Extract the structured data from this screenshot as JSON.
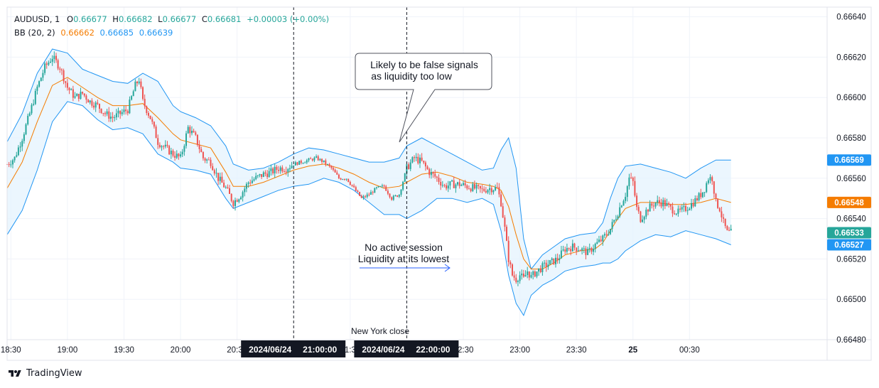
{
  "legend": {
    "symbol": "AUDUSD",
    "interval": "1",
    "o_label": "O",
    "o_value": "0.66677",
    "h_label": "H",
    "h_value": "0.66682",
    "l_label": "L",
    "l_value": "0.66677",
    "c_label": "C",
    "c_value": "0.66681",
    "change": "+0.00003 (+0.00%)",
    "bb_label": "BB (20, 2)",
    "bb_basis": "0.66662",
    "bb_upper": "0.66685",
    "bb_lower": "0.66639"
  },
  "brand": {
    "name": "TradingView"
  },
  "colors": {
    "up": "#26a69a",
    "down": "#ef5350",
    "basis": "#f57c00",
    "band": "#2196f3",
    "band_fill": "#e3f2fd",
    "grid": "#f0f3fa",
    "axis_text": "#131722",
    "time_badge_bg": "#131722"
  },
  "chart_data": {
    "type": "candlestick",
    "instrument": "AUDUSD",
    "interval": "1",
    "y_ticks": [
      0.6648,
      0.665,
      0.6652,
      0.6654,
      0.6656,
      0.6658,
      0.666,
      0.6662,
      0.6664
    ],
    "y_tick_labels": [
      "0.66480",
      "0.66500",
      "0.66520",
      "0.66540",
      "0.66560",
      "0.66580",
      "0.66600",
      "0.66620",
      "0.66640"
    ],
    "ylim": [
      0.66475,
      0.66644
    ],
    "x_range_minutes": [
      1108,
      1543
    ],
    "x_ticks": [
      {
        "t": 1110,
        "label": "18:30",
        "bold": false
      },
      {
        "t": 1140,
        "label": "19:00",
        "bold": false
      },
      {
        "t": 1170,
        "label": "19:30",
        "bold": false
      },
      {
        "t": 1200,
        "label": "20:00",
        "bold": false
      },
      {
        "t": 1230,
        "label": "20:30",
        "bold": false
      },
      {
        "t": 1290,
        "label": "21:30",
        "bold": false
      },
      {
        "t": 1350,
        "label": "22:30",
        "bold": false
      },
      {
        "t": 1380,
        "label": "23:00",
        "bold": false
      },
      {
        "t": 1410,
        "label": "23:30",
        "bold": false
      },
      {
        "t": 1440,
        "label": "25",
        "bold": true
      },
      {
        "t": 1470,
        "label": "00:30",
        "bold": false
      }
    ],
    "crosshair_markers": [
      {
        "t": 1260,
        "date": "2024/06/24",
        "time": "21:00:00"
      },
      {
        "t": 1320,
        "date": "2024/06/24",
        "time": "22:00:00"
      }
    ],
    "price_badges": [
      {
        "value": "0.66569",
        "color": "#2196f3"
      },
      {
        "value": "0.66548",
        "color": "#f57c00"
      },
      {
        "value": "0.66533",
        "color": "#26a69a"
      },
      {
        "value": "0.66527",
        "color": "#2196f3"
      }
    ],
    "annotations": {
      "callout": [
        "Likely to be false signals",
        "as liquidity too low"
      ],
      "session_note": [
        "No active session",
        "Liquidity at its lowest"
      ],
      "ny_close": "New York close"
    },
    "price_path": [
      [
        1108,
        0.66567
      ],
      [
        1112,
        0.6657
      ],
      [
        1116,
        0.6658
      ],
      [
        1120,
        0.66592
      ],
      [
        1124,
        0.66605
      ],
      [
        1128,
        0.66615
      ],
      [
        1132,
        0.6662
      ],
      [
        1136,
        0.66615
      ],
      [
        1140,
        0.66605
      ],
      [
        1144,
        0.666
      ],
      [
        1148,
        0.66602
      ],
      [
        1152,
        0.66598
      ],
      [
        1156,
        0.66596
      ],
      [
        1160,
        0.66592
      ],
      [
        1164,
        0.6659
      ],
      [
        1168,
        0.66592
      ],
      [
        1172,
        0.66594
      ],
      [
        1176,
        0.66606
      ],
      [
        1178,
        0.66609
      ],
      [
        1180,
        0.66598
      ],
      [
        1184,
        0.6659
      ],
      [
        1188,
        0.66578
      ],
      [
        1192,
        0.66575
      ],
      [
        1196,
        0.66572
      ],
      [
        1200,
        0.6657
      ],
      [
        1204,
        0.66585
      ],
      [
        1208,
        0.6658
      ],
      [
        1212,
        0.6657
      ],
      [
        1216,
        0.66568
      ],
      [
        1220,
        0.6656
      ],
      [
        1224,
        0.66555
      ],
      [
        1228,
        0.66548
      ],
      [
        1232,
        0.66552
      ],
      [
        1236,
        0.66558
      ],
      [
        1240,
        0.6656
      ],
      [
        1244,
        0.66562
      ],
      [
        1248,
        0.66563
      ],
      [
        1252,
        0.66565
      ],
      [
        1256,
        0.66565
      ],
      [
        1260,
        0.66567
      ],
      [
        1264,
        0.66568
      ],
      [
        1268,
        0.66569
      ],
      [
        1272,
        0.6657
      ],
      [
        1276,
        0.66568
      ],
      [
        1280,
        0.66565
      ],
      [
        1284,
        0.6656
      ],
      [
        1288,
        0.6656
      ],
      [
        1292,
        0.66555
      ],
      [
        1296,
        0.6655
      ],
      [
        1300,
        0.66552
      ],
      [
        1304,
        0.66555
      ],
      [
        1308,
        0.66556
      ],
      [
        1312,
        0.6655
      ],
      [
        1316,
        0.66552
      ],
      [
        1320,
        0.66565
      ],
      [
        1324,
        0.6657
      ],
      [
        1328,
        0.66568
      ],
      [
        1332,
        0.66563
      ],
      [
        1336,
        0.6656
      ],
      [
        1340,
        0.66556
      ],
      [
        1344,
        0.66557
      ],
      [
        1348,
        0.66557
      ],
      [
        1352,
        0.66556
      ],
      [
        1356,
        0.66555
      ],
      [
        1360,
        0.66554
      ],
      [
        1364,
        0.66555
      ],
      [
        1368,
        0.66555
      ],
      [
        1370,
        0.66548
      ],
      [
        1372,
        0.66535
      ],
      [
        1374,
        0.6652
      ],
      [
        1376,
        0.66512
      ],
      [
        1378,
        0.6651
      ],
      [
        1380,
        0.66512
      ],
      [
        1382,
        0.6651
      ],
      [
        1384,
        0.66514
      ],
      [
        1386,
        0.66511
      ],
      [
        1388,
        0.66513
      ],
      [
        1392,
        0.66516
      ],
      [
        1396,
        0.66518
      ],
      [
        1400,
        0.6652
      ],
      [
        1404,
        0.66525
      ],
      [
        1408,
        0.66526
      ],
      [
        1412,
        0.66525
      ],
      [
        1416,
        0.66523
      ],
      [
        1420,
        0.66527
      ],
      [
        1424,
        0.6653
      ],
      [
        1428,
        0.66535
      ],
      [
        1432,
        0.66543
      ],
      [
        1434,
        0.66548
      ],
      [
        1436,
        0.66552
      ],
      [
        1438,
        0.6656
      ],
      [
        1440,
        0.66558
      ],
      [
        1442,
        0.66545
      ],
      [
        1444,
        0.6654
      ],
      [
        1448,
        0.66545
      ],
      [
        1452,
        0.66548
      ],
      [
        1456,
        0.66548
      ],
      [
        1460,
        0.66545
      ],
      [
        1464,
        0.66543
      ],
      [
        1468,
        0.66545
      ],
      [
        1472,
        0.66548
      ],
      [
        1476,
        0.66552
      ],
      [
        1478,
        0.66555
      ],
      [
        1480,
        0.6656
      ],
      [
        1482,
        0.6656
      ],
      [
        1484,
        0.66548
      ],
      [
        1486,
        0.66545
      ],
      [
        1488,
        0.66538
      ],
      [
        1490,
        0.66533
      ],
      [
        1492,
        0.66533
      ]
    ],
    "bollinger": {
      "upper": [
        [
          1108,
          0.66578
        ],
        [
          1116,
          0.66592
        ],
        [
          1124,
          0.66612
        ],
        [
          1132,
          0.66624
        ],
        [
          1140,
          0.66622
        ],
        [
          1148,
          0.66614
        ],
        [
          1156,
          0.66611
        ],
        [
          1164,
          0.66608
        ],
        [
          1172,
          0.66607
        ],
        [
          1180,
          0.66612
        ],
        [
          1188,
          0.66608
        ],
        [
          1196,
          0.66596
        ],
        [
          1200,
          0.66593
        ],
        [
          1208,
          0.6659
        ],
        [
          1216,
          0.66586
        ],
        [
          1224,
          0.66576
        ],
        [
          1228,
          0.66567
        ],
        [
          1236,
          0.66564
        ],
        [
          1244,
          0.66565
        ],
        [
          1252,
          0.66568
        ],
        [
          1260,
          0.66572
        ],
        [
          1268,
          0.66575
        ],
        [
          1276,
          0.66574
        ],
        [
          1284,
          0.66572
        ],
        [
          1292,
          0.6657
        ],
        [
          1300,
          0.66568
        ],
        [
          1308,
          0.66568
        ],
        [
          1316,
          0.6657
        ],
        [
          1320,
          0.66576
        ],
        [
          1328,
          0.6658
        ],
        [
          1336,
          0.66576
        ],
        [
          1344,
          0.66572
        ],
        [
          1352,
          0.66568
        ],
        [
          1360,
          0.66564
        ],
        [
          1366,
          0.66565
        ],
        [
          1370,
          0.66574
        ],
        [
          1374,
          0.6658
        ],
        [
          1378,
          0.66565
        ],
        [
          1382,
          0.6653
        ],
        [
          1386,
          0.66515
        ],
        [
          1392,
          0.66522
        ],
        [
          1398,
          0.66526
        ],
        [
          1404,
          0.6653
        ],
        [
          1412,
          0.66532
        ],
        [
          1420,
          0.66533
        ],
        [
          1424,
          0.66538
        ],
        [
          1428,
          0.6655
        ],
        [
          1432,
          0.6656
        ],
        [
          1436,
          0.66566
        ],
        [
          1444,
          0.66567
        ],
        [
          1452,
          0.66565
        ],
        [
          1460,
          0.66563
        ],
        [
          1468,
          0.6656
        ],
        [
          1476,
          0.66565
        ],
        [
          1484,
          0.66569
        ],
        [
          1492,
          0.66569
        ]
      ],
      "basis": [
        [
          1108,
          0.66555
        ],
        [
          1116,
          0.66568
        ],
        [
          1124,
          0.66588
        ],
        [
          1132,
          0.66606
        ],
        [
          1140,
          0.6661
        ],
        [
          1148,
          0.66605
        ],
        [
          1156,
          0.666
        ],
        [
          1164,
          0.66596
        ],
        [
          1172,
          0.66596
        ],
        [
          1180,
          0.66597
        ],
        [
          1188,
          0.6659
        ],
        [
          1196,
          0.66582
        ],
        [
          1200,
          0.66579
        ],
        [
          1208,
          0.66577
        ],
        [
          1216,
          0.66575
        ],
        [
          1224,
          0.66563
        ],
        [
          1228,
          0.66556
        ],
        [
          1236,
          0.66556
        ],
        [
          1244,
          0.66558
        ],
        [
          1252,
          0.66561
        ],
        [
          1260,
          0.66564
        ],
        [
          1268,
          0.66566
        ],
        [
          1276,
          0.66567
        ],
        [
          1284,
          0.66565
        ],
        [
          1292,
          0.66562
        ],
        [
          1300,
          0.66558
        ],
        [
          1308,
          0.66555
        ],
        [
          1316,
          0.66556
        ],
        [
          1320,
          0.66558
        ],
        [
          1328,
          0.66562
        ],
        [
          1336,
          0.66563
        ],
        [
          1344,
          0.66561
        ],
        [
          1352,
          0.66558
        ],
        [
          1360,
          0.66557
        ],
        [
          1366,
          0.66556
        ],
        [
          1370,
          0.66554
        ],
        [
          1374,
          0.66546
        ],
        [
          1378,
          0.66532
        ],
        [
          1382,
          0.6652
        ],
        [
          1386,
          0.66515
        ],
        [
          1392,
          0.66515
        ],
        [
          1398,
          0.66518
        ],
        [
          1404,
          0.66522
        ],
        [
          1412,
          0.66524
        ],
        [
          1420,
          0.66525
        ],
        [
          1424,
          0.66528
        ],
        [
          1428,
          0.66534
        ],
        [
          1432,
          0.6654
        ],
        [
          1436,
          0.66545
        ],
        [
          1444,
          0.66548
        ],
        [
          1452,
          0.66548
        ],
        [
          1460,
          0.66547
        ],
        [
          1468,
          0.66547
        ],
        [
          1476,
          0.66548
        ],
        [
          1484,
          0.6655
        ],
        [
          1492,
          0.66548
        ]
      ],
      "lower": [
        [
          1108,
          0.66532
        ],
        [
          1116,
          0.66544
        ],
        [
          1124,
          0.66564
        ],
        [
          1132,
          0.66588
        ],
        [
          1140,
          0.66598
        ],
        [
          1148,
          0.66596
        ],
        [
          1156,
          0.66589
        ],
        [
          1164,
          0.66584
        ],
        [
          1172,
          0.66585
        ],
        [
          1180,
          0.66582
        ],
        [
          1188,
          0.66572
        ],
        [
          1196,
          0.66568
        ],
        [
          1200,
          0.66565
        ],
        [
          1208,
          0.66564
        ],
        [
          1216,
          0.66562
        ],
        [
          1224,
          0.6655
        ],
        [
          1228,
          0.66545
        ],
        [
          1236,
          0.66548
        ],
        [
          1244,
          0.66551
        ],
        [
          1252,
          0.66554
        ],
        [
          1260,
          0.66556
        ],
        [
          1268,
          0.66557
        ],
        [
          1276,
          0.6656
        ],
        [
          1284,
          0.66558
        ],
        [
          1292,
          0.66554
        ],
        [
          1300,
          0.66548
        ],
        [
          1308,
          0.66542
        ],
        [
          1316,
          0.66542
        ],
        [
          1320,
          0.6654
        ],
        [
          1328,
          0.66544
        ],
        [
          1336,
          0.6655
        ],
        [
          1344,
          0.6655
        ],
        [
          1352,
          0.66548
        ],
        [
          1360,
          0.6655
        ],
        [
          1366,
          0.66547
        ],
        [
          1370,
          0.66534
        ],
        [
          1374,
          0.66512
        ],
        [
          1378,
          0.66498
        ],
        [
          1382,
          0.66492
        ],
        [
          1386,
          0.66502
        ],
        [
          1392,
          0.66507
        ],
        [
          1398,
          0.6651
        ],
        [
          1404,
          0.66514
        ],
        [
          1412,
          0.66516
        ],
        [
          1420,
          0.66517
        ],
        [
          1424,
          0.66518
        ],
        [
          1428,
          0.66518
        ],
        [
          1432,
          0.6652
        ],
        [
          1436,
          0.66524
        ],
        [
          1444,
          0.66529
        ],
        [
          1452,
          0.66532
        ],
        [
          1460,
          0.66531
        ],
        [
          1468,
          0.66534
        ],
        [
          1476,
          0.66532
        ],
        [
          1484,
          0.6653
        ],
        [
          1492,
          0.66527
        ]
      ]
    }
  }
}
